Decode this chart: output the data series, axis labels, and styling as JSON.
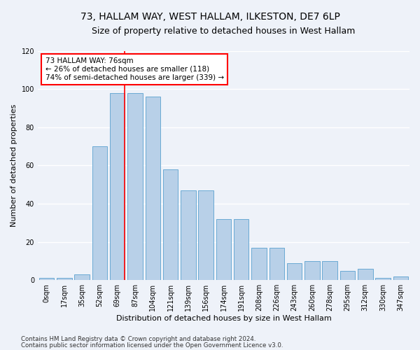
{
  "title1": "73, HALLAM WAY, WEST HALLAM, ILKESTON, DE7 6LP",
  "title2": "Size of property relative to detached houses in West Hallam",
  "xlabel": "Distribution of detached houses by size in West Hallam",
  "ylabel": "Number of detached properties",
  "bar_labels": [
    "0sqm",
    "17sqm",
    "35sqm",
    "52sqm",
    "69sqm",
    "87sqm",
    "104sqm",
    "121sqm",
    "139sqm",
    "156sqm",
    "174sqm",
    "191sqm",
    "208sqm",
    "226sqm",
    "243sqm",
    "260sqm",
    "278sqm",
    "295sqm",
    "312sqm",
    "330sqm",
    "347sqm"
  ],
  "bar_values": [
    1,
    1,
    3,
    70,
    98,
    98,
    96,
    58,
    47,
    47,
    32,
    32,
    17,
    17,
    9,
    10,
    10,
    5,
    6,
    1,
    2
  ],
  "bar_color": "#b8d0e8",
  "bar_edgecolor": "#6aaad4",
  "vline_bin_index": 4,
  "vline_color": "red",
  "annotation_text": "73 HALLAM WAY: 76sqm\n← 26% of detached houses are smaller (118)\n74% of semi-detached houses are larger (339) →",
  "annotation_box_facecolor": "white",
  "annotation_box_edgecolor": "red",
  "ylim": [
    0,
    120
  ],
  "yticks": [
    0,
    20,
    40,
    60,
    80,
    100,
    120
  ],
  "background_color": "#eef2f9",
  "grid_color": "white",
  "title1_fontsize": 10,
  "title2_fontsize": 9,
  "xlabel_fontsize": 8,
  "ylabel_fontsize": 8,
  "tick_fontsize": 7,
  "annotation_fontsize": 7.5,
  "footer_fontsize": 6.2,
  "footer1": "Contains HM Land Registry data © Crown copyright and database right 2024.",
  "footer2": "Contains public sector information licensed under the Open Government Licence v3.0."
}
